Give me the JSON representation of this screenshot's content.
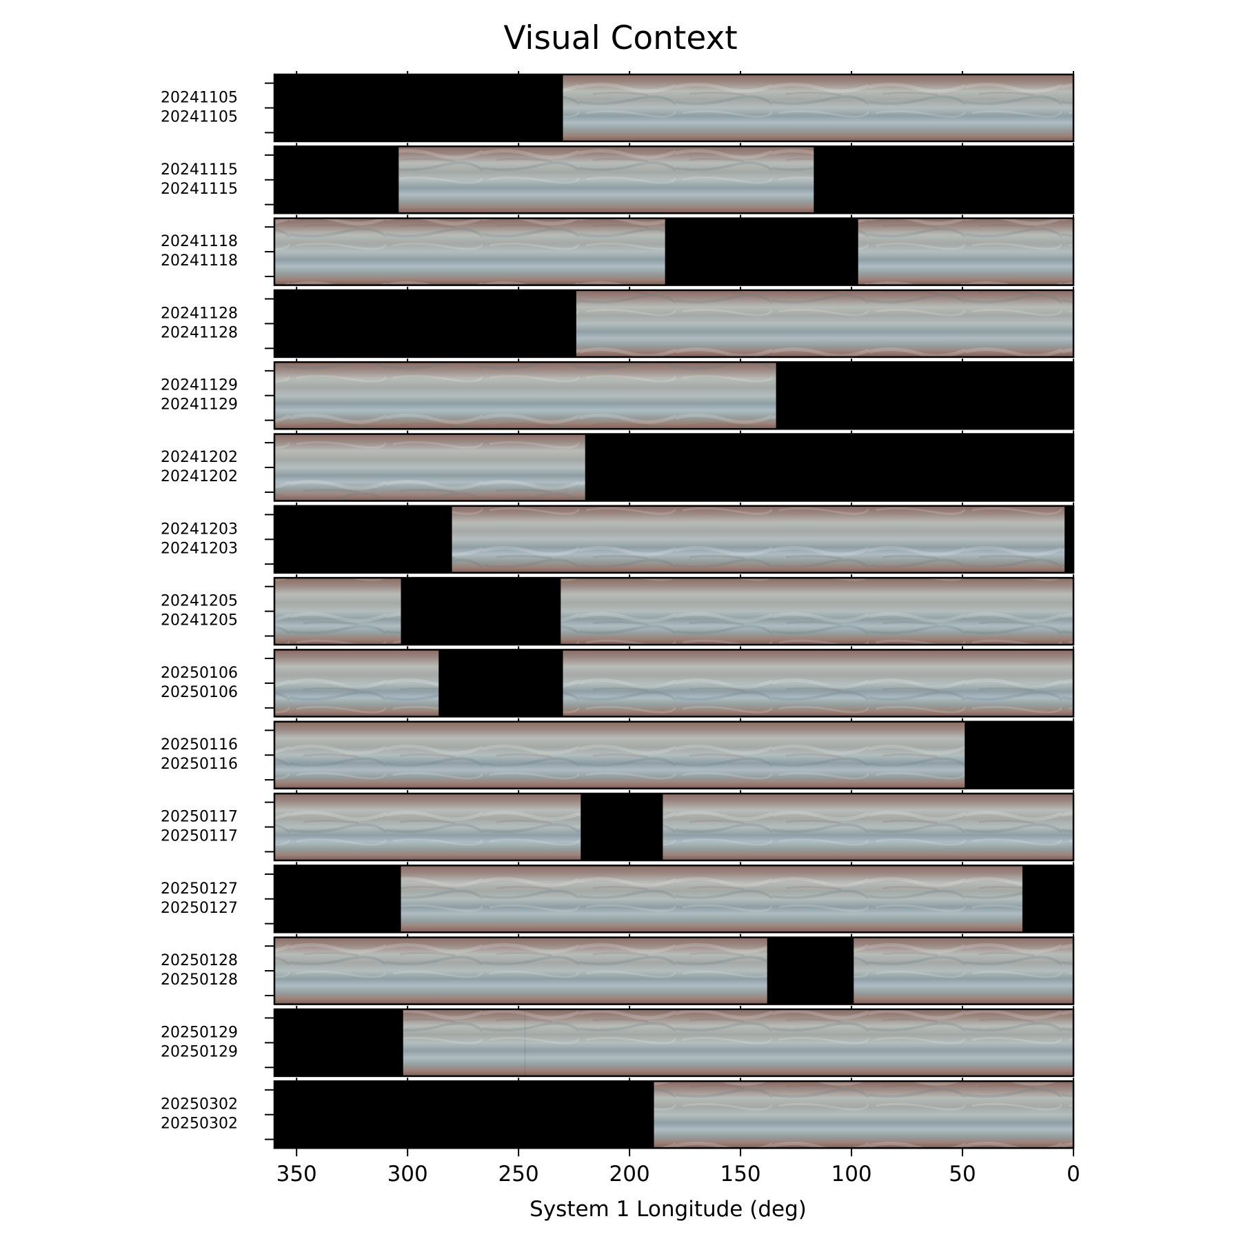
{
  "chart_data": {
    "type": "image-strip panels",
    "title": "Visual Context",
    "xlabel": "System 1 Longitude (deg)",
    "xlim": [
      360,
      0
    ],
    "x_ticks": [
      350,
      300,
      250,
      200,
      150,
      100,
      50,
      0
    ],
    "rows": [
      {
        "label": "20241105",
        "coverage": [
          [
            230,
            0
          ]
        ]
      },
      {
        "label": "20241115",
        "coverage": [
          [
            304,
            117
          ]
        ]
      },
      {
        "label": "20241118",
        "coverage": [
          [
            360,
            184
          ],
          [
            97,
            0
          ]
        ]
      },
      {
        "label": "20241128",
        "coverage": [
          [
            224,
            0
          ]
        ]
      },
      {
        "label": "20241129",
        "coverage": [
          [
            360,
            134
          ]
        ]
      },
      {
        "label": "20241202",
        "coverage": [
          [
            360,
            220
          ]
        ]
      },
      {
        "label": "20241203",
        "coverage": [
          [
            280,
            4
          ]
        ]
      },
      {
        "label": "20241205",
        "coverage": [
          [
            360,
            303
          ],
          [
            231,
            0
          ]
        ]
      },
      {
        "label": "20250106",
        "coverage": [
          [
            360,
            286
          ],
          [
            230,
            0
          ]
        ]
      },
      {
        "label": "20250116",
        "coverage": [
          [
            360,
            49
          ]
        ]
      },
      {
        "label": "20250117",
        "coverage": [
          [
            360,
            222
          ],
          [
            185,
            0
          ]
        ]
      },
      {
        "label": "20250127",
        "coverage": [
          [
            303,
            23
          ]
        ]
      },
      {
        "label": "20250128",
        "coverage": [
          [
            360,
            138
          ],
          [
            99,
            0
          ]
        ]
      },
      {
        "label": "20250129",
        "coverage": [
          [
            302,
            247
          ],
          [
            247,
            0
          ]
        ]
      },
      {
        "label": "20250302",
        "coverage": [
          [
            189,
            0
          ]
        ]
      }
    ],
    "gap_rows_note_excluded": true,
    "missing_color": "#000000",
    "band_colors": [
      "#8a6a60",
      "#b3b9b5",
      "#9fb4bc",
      "#7f8f96",
      "#a58f86"
    ],
    "grid": false
  }
}
